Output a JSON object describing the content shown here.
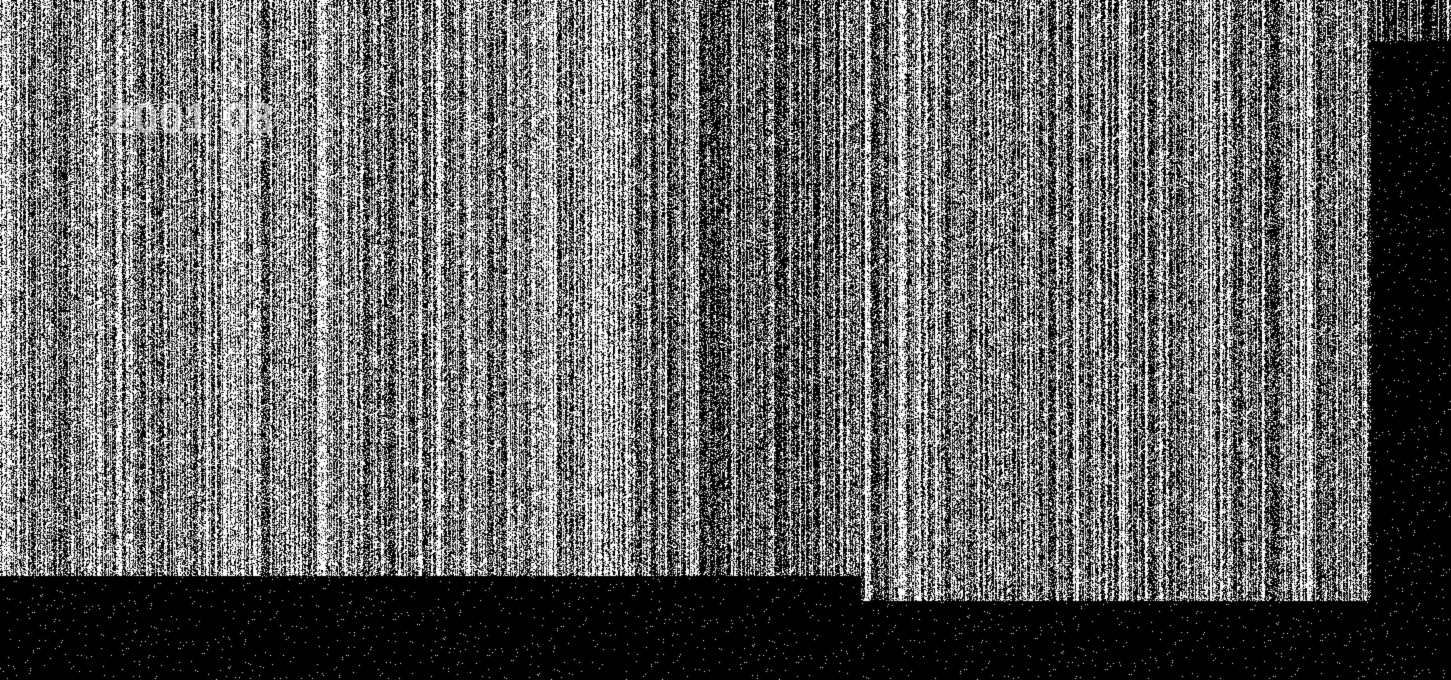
{
  "image": {
    "overlay_text": "2001 08",
    "colors": {
      "background": "#000000",
      "stripes": "#ffffff"
    }
  }
}
